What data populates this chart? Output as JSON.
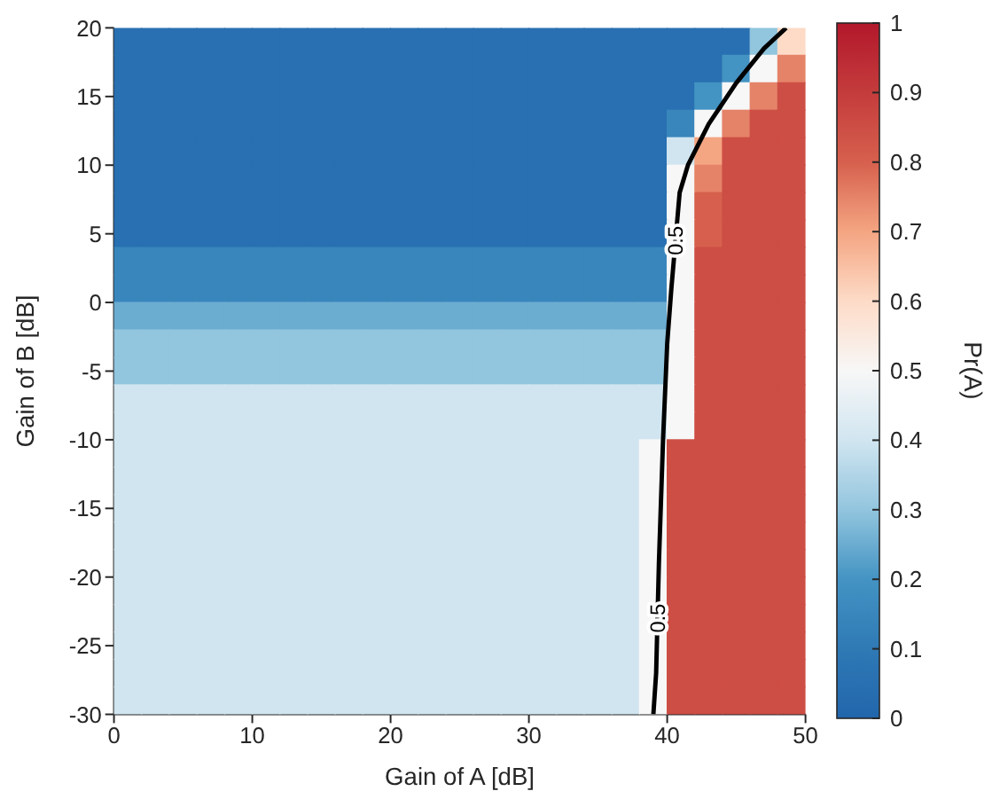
{
  "chart_data": {
    "type": "heatmap",
    "xlabel": "Gain of A [dB]",
    "ylabel": "Gain of B [dB]",
    "clabel": "Pr(A)",
    "xlim": [
      0,
      50
    ],
    "xticks": [
      0,
      10,
      20,
      30,
      40,
      50
    ],
    "ylim": [
      -30,
      20
    ],
    "yticks": [
      -30,
      -25,
      -20,
      -15,
      -10,
      -5,
      0,
      5,
      10,
      15,
      20
    ],
    "clim": [
      0,
      1
    ],
    "cticks": [
      0,
      0.1,
      0.2,
      0.3,
      0.4,
      0.5,
      0.6,
      0.7,
      0.8,
      0.9,
      1
    ],
    "cells": [
      [
        0.05,
        0.05,
        0.05,
        0.05,
        0.05,
        0.05,
        0.05,
        0.05,
        0.05,
        0.05,
        0.05,
        0.05,
        0.05,
        0.05,
        0.05,
        0.05,
        0.05,
        0.05,
        0.05,
        0.05,
        0.05,
        0.05,
        0.05,
        0.3,
        0.6
      ],
      [
        0.05,
        0.05,
        0.05,
        0.05,
        0.05,
        0.05,
        0.05,
        0.05,
        0.05,
        0.05,
        0.05,
        0.05,
        0.05,
        0.05,
        0.05,
        0.05,
        0.05,
        0.05,
        0.05,
        0.05,
        0.05,
        0.05,
        0.2,
        0.5,
        0.75
      ],
      [
        0.05,
        0.05,
        0.05,
        0.05,
        0.05,
        0.05,
        0.05,
        0.05,
        0.05,
        0.05,
        0.05,
        0.05,
        0.05,
        0.05,
        0.05,
        0.05,
        0.05,
        0.05,
        0.05,
        0.05,
        0.05,
        0.2,
        0.5,
        0.75,
        0.85
      ],
      [
        0.05,
        0.05,
        0.05,
        0.05,
        0.05,
        0.05,
        0.05,
        0.05,
        0.05,
        0.05,
        0.05,
        0.05,
        0.05,
        0.05,
        0.05,
        0.05,
        0.05,
        0.05,
        0.05,
        0.05,
        0.15,
        0.5,
        0.75,
        0.85,
        0.85
      ],
      [
        0.05,
        0.05,
        0.05,
        0.05,
        0.05,
        0.05,
        0.05,
        0.05,
        0.05,
        0.05,
        0.05,
        0.05,
        0.05,
        0.05,
        0.05,
        0.05,
        0.05,
        0.05,
        0.05,
        0.05,
        0.4,
        0.7,
        0.85,
        0.85,
        0.85
      ],
      [
        0.05,
        0.05,
        0.05,
        0.05,
        0.05,
        0.05,
        0.05,
        0.05,
        0.05,
        0.05,
        0.05,
        0.05,
        0.05,
        0.05,
        0.05,
        0.05,
        0.05,
        0.05,
        0.05,
        0.05,
        0.5,
        0.75,
        0.85,
        0.85,
        0.85
      ],
      [
        0.05,
        0.05,
        0.05,
        0.05,
        0.05,
        0.05,
        0.05,
        0.05,
        0.05,
        0.05,
        0.05,
        0.05,
        0.05,
        0.05,
        0.05,
        0.05,
        0.05,
        0.05,
        0.05,
        0.05,
        0.5,
        0.8,
        0.85,
        0.85,
        0.85
      ],
      [
        0.05,
        0.05,
        0.05,
        0.05,
        0.05,
        0.05,
        0.05,
        0.05,
        0.05,
        0.05,
        0.05,
        0.05,
        0.05,
        0.05,
        0.05,
        0.05,
        0.05,
        0.05,
        0.05,
        0.05,
        0.5,
        0.8,
        0.85,
        0.85,
        0.85
      ],
      [
        0.15,
        0.15,
        0.15,
        0.15,
        0.15,
        0.15,
        0.15,
        0.15,
        0.15,
        0.15,
        0.15,
        0.15,
        0.15,
        0.15,
        0.15,
        0.15,
        0.15,
        0.15,
        0.15,
        0.15,
        0.5,
        0.85,
        0.85,
        0.85,
        0.85
      ],
      [
        0.15,
        0.15,
        0.15,
        0.15,
        0.15,
        0.15,
        0.15,
        0.15,
        0.15,
        0.15,
        0.15,
        0.15,
        0.15,
        0.15,
        0.15,
        0.15,
        0.15,
        0.15,
        0.15,
        0.15,
        0.5,
        0.85,
        0.85,
        0.85,
        0.85
      ],
      [
        0.25,
        0.25,
        0.25,
        0.25,
        0.25,
        0.25,
        0.25,
        0.25,
        0.25,
        0.25,
        0.25,
        0.25,
        0.25,
        0.25,
        0.25,
        0.25,
        0.25,
        0.25,
        0.25,
        0.25,
        0.5,
        0.85,
        0.85,
        0.85,
        0.85
      ],
      [
        0.3,
        0.3,
        0.3,
        0.3,
        0.3,
        0.3,
        0.3,
        0.3,
        0.3,
        0.3,
        0.3,
        0.3,
        0.3,
        0.3,
        0.3,
        0.3,
        0.3,
        0.3,
        0.3,
        0.3,
        0.5,
        0.85,
        0.85,
        0.85,
        0.85
      ],
      [
        0.3,
        0.3,
        0.3,
        0.3,
        0.3,
        0.3,
        0.3,
        0.3,
        0.3,
        0.3,
        0.3,
        0.3,
        0.3,
        0.3,
        0.3,
        0.3,
        0.3,
        0.3,
        0.3,
        0.3,
        0.5,
        0.85,
        0.85,
        0.85,
        0.85
      ],
      [
        0.4,
        0.4,
        0.4,
        0.4,
        0.4,
        0.4,
        0.4,
        0.4,
        0.4,
        0.4,
        0.4,
        0.4,
        0.4,
        0.4,
        0.4,
        0.4,
        0.4,
        0.4,
        0.4,
        0.4,
        0.5,
        0.85,
        0.85,
        0.85,
        0.85
      ],
      [
        0.4,
        0.4,
        0.4,
        0.4,
        0.4,
        0.4,
        0.4,
        0.4,
        0.4,
        0.4,
        0.4,
        0.4,
        0.4,
        0.4,
        0.4,
        0.4,
        0.4,
        0.4,
        0.4,
        0.4,
        0.5,
        0.85,
        0.85,
        0.85,
        0.85
      ],
      [
        0.4,
        0.4,
        0.4,
        0.4,
        0.4,
        0.4,
        0.4,
        0.4,
        0.4,
        0.4,
        0.4,
        0.4,
        0.4,
        0.4,
        0.4,
        0.4,
        0.4,
        0.4,
        0.4,
        0.5,
        0.85,
        0.85,
        0.85,
        0.85,
        0.85
      ],
      [
        0.4,
        0.4,
        0.4,
        0.4,
        0.4,
        0.4,
        0.4,
        0.4,
        0.4,
        0.4,
        0.4,
        0.4,
        0.4,
        0.4,
        0.4,
        0.4,
        0.4,
        0.4,
        0.4,
        0.5,
        0.85,
        0.85,
        0.85,
        0.85,
        0.85
      ],
      [
        0.4,
        0.4,
        0.4,
        0.4,
        0.4,
        0.4,
        0.4,
        0.4,
        0.4,
        0.4,
        0.4,
        0.4,
        0.4,
        0.4,
        0.4,
        0.4,
        0.4,
        0.4,
        0.4,
        0.5,
        0.85,
        0.85,
        0.85,
        0.85,
        0.85
      ],
      [
        0.4,
        0.4,
        0.4,
        0.4,
        0.4,
        0.4,
        0.4,
        0.4,
        0.4,
        0.4,
        0.4,
        0.4,
        0.4,
        0.4,
        0.4,
        0.4,
        0.4,
        0.4,
        0.4,
        0.5,
        0.85,
        0.85,
        0.85,
        0.85,
        0.85
      ],
      [
        0.4,
        0.4,
        0.4,
        0.4,
        0.4,
        0.4,
        0.4,
        0.4,
        0.4,
        0.4,
        0.4,
        0.4,
        0.4,
        0.4,
        0.4,
        0.4,
        0.4,
        0.4,
        0.4,
        0.5,
        0.85,
        0.85,
        0.85,
        0.85,
        0.85
      ],
      [
        0.4,
        0.4,
        0.4,
        0.4,
        0.4,
        0.4,
        0.4,
        0.4,
        0.4,
        0.4,
        0.4,
        0.4,
        0.4,
        0.4,
        0.4,
        0.4,
        0.4,
        0.4,
        0.4,
        0.5,
        0.85,
        0.85,
        0.85,
        0.85,
        0.85
      ],
      [
        0.4,
        0.4,
        0.4,
        0.4,
        0.4,
        0.4,
        0.4,
        0.4,
        0.4,
        0.4,
        0.4,
        0.4,
        0.4,
        0.4,
        0.4,
        0.4,
        0.4,
        0.4,
        0.4,
        0.5,
        0.85,
        0.85,
        0.85,
        0.85,
        0.85
      ],
      [
        0.4,
        0.4,
        0.4,
        0.4,
        0.4,
        0.4,
        0.4,
        0.4,
        0.4,
        0.4,
        0.4,
        0.4,
        0.4,
        0.4,
        0.4,
        0.4,
        0.4,
        0.4,
        0.4,
        0.5,
        0.85,
        0.85,
        0.85,
        0.85,
        0.85
      ],
      [
        0.4,
        0.4,
        0.4,
        0.4,
        0.4,
        0.4,
        0.4,
        0.4,
        0.4,
        0.4,
        0.4,
        0.4,
        0.4,
        0.4,
        0.4,
        0.4,
        0.4,
        0.4,
        0.4,
        0.5,
        0.85,
        0.85,
        0.85,
        0.85,
        0.85
      ],
      [
        0.4,
        0.4,
        0.4,
        0.4,
        0.4,
        0.4,
        0.4,
        0.4,
        0.4,
        0.4,
        0.4,
        0.4,
        0.4,
        0.4,
        0.4,
        0.4,
        0.4,
        0.4,
        0.4,
        0.5,
        0.85,
        0.85,
        0.85,
        0.85,
        0.85
      ]
    ],
    "series": [
      {
        "type": "line",
        "color": "#000000",
        "x": [
          39,
          39.2,
          39.3,
          39.4,
          39.7,
          40,
          40.3,
          40.6,
          40.9,
          41.5,
          43,
          45,
          47,
          48.6
        ],
        "values": [
          -30,
          -27,
          -23,
          -19,
          -10,
          -3,
          1,
          4.5,
          8,
          10,
          13,
          16,
          18.5,
          20
        ]
      }
    ],
    "annotations": [
      {
        "text": "0.5",
        "x": 39.3,
        "y": -23
      },
      {
        "text": "0.5",
        "x": 40.6,
        "y": 4.5
      }
    ]
  }
}
